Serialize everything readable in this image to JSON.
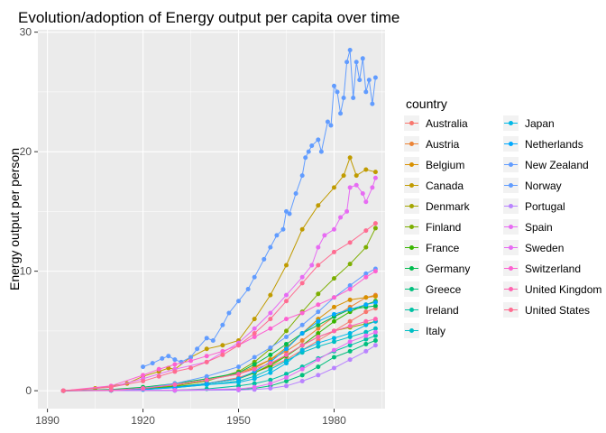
{
  "chart_data": {
    "type": "line",
    "title": "Evolution/adoption of Energy output per capita over time",
    "xlabel": "",
    "ylabel": "Energy output per person",
    "xlim": [
      1887,
      1996
    ],
    "ylim": [
      -1.5,
      30.2
    ],
    "xticks": [
      1890,
      1920,
      1950,
      1980
    ],
    "yticks": [
      0,
      10,
      20,
      30
    ],
    "grid": true,
    "markers": true,
    "legend": {
      "title": "country",
      "position": "right"
    },
    "series": [
      {
        "name": "Australia",
        "color": "#F8766D",
        "x": [
          1895,
          1910,
          1920,
          1930,
          1940,
          1950,
          1960,
          1965,
          1970,
          1975,
          1980,
          1985,
          1990,
          1993
        ],
        "y": [
          0,
          0.05,
          0.15,
          0.3,
          0.6,
          1.1,
          2.0,
          2.6,
          3.4,
          4.2,
          5.0,
          5.8,
          6.6,
          6.9
        ]
      },
      {
        "name": "Austria",
        "color": "#EB8335",
        "x": [
          1895,
          1910,
          1920,
          1930,
          1940,
          1950,
          1955,
          1960,
          1965,
          1970,
          1975,
          1980,
          1985,
          1990,
          1993
        ],
        "y": [
          0,
          0.05,
          0.2,
          0.5,
          0.9,
          1.5,
          2.0,
          2.6,
          3.3,
          4.2,
          5.2,
          6.2,
          7.0,
          7.8,
          8.0
        ]
      },
      {
        "name": "Belgium",
        "color": "#D89000",
        "x": [
          1895,
          1910,
          1920,
          1930,
          1940,
          1950,
          1955,
          1960,
          1965,
          1970,
          1975,
          1980,
          1985,
          1990,
          1993
        ],
        "y": [
          0,
          0.05,
          0.2,
          0.5,
          0.9,
          1.4,
          1.9,
          2.6,
          3.6,
          4.8,
          6.0,
          7.0,
          7.6,
          7.8,
          7.9
        ]
      },
      {
        "name": "Canada",
        "color": "#C09B00",
        "x": [
          1895,
          1905,
          1915,
          1920,
          1925,
          1928,
          1930,
          1935,
          1940,
          1945,
          1950,
          1955,
          1960,
          1965,
          1970,
          1975,
          1980,
          1983,
          1985,
          1987,
          1990,
          1993
        ],
        "y": [
          0,
          0.2,
          0.6,
          1.2,
          1.6,
          1.9,
          1.8,
          2.8,
          3.5,
          3.8,
          4.2,
          6.0,
          8.0,
          10.5,
          13.5,
          15.5,
          17.0,
          18.0,
          19.5,
          18.0,
          18.5,
          18.3
        ]
      },
      {
        "name": "Denmark",
        "color": "#A3A500",
        "x": [
          1895,
          1910,
          1920,
          1930,
          1940,
          1950,
          1955,
          1960,
          1965,
          1970,
          1975,
          1980,
          1985,
          1990,
          1993
        ],
        "y": [
          0,
          0.03,
          0.1,
          0.3,
          0.6,
          1.0,
          1.5,
          2.2,
          3.0,
          3.8,
          4.5,
          5.0,
          5.3,
          5.6,
          5.8
        ]
      },
      {
        "name": "Finland",
        "color": "#7CAE00",
        "x": [
          1895,
          1910,
          1920,
          1930,
          1940,
          1950,
          1955,
          1960,
          1965,
          1970,
          1975,
          1980,
          1985,
          1990,
          1993
        ],
        "y": [
          0,
          0.05,
          0.15,
          0.4,
          0.8,
          1.6,
          2.4,
          3.5,
          5.0,
          6.6,
          8.1,
          9.4,
          10.6,
          12.0,
          13.6
        ]
      },
      {
        "name": "France",
        "color": "#39B600",
        "x": [
          1895,
          1910,
          1920,
          1930,
          1940,
          1950,
          1955,
          1960,
          1965,
          1970,
          1975,
          1980,
          1985,
          1990,
          1993
        ],
        "y": [
          0,
          0.05,
          0.15,
          0.35,
          0.6,
          1.0,
          1.5,
          2.1,
          2.9,
          3.8,
          4.8,
          5.8,
          6.6,
          7.2,
          7.5
        ]
      },
      {
        "name": "Germany",
        "color": "#00BB4E",
        "x": [
          1895,
          1910,
          1920,
          1930,
          1940,
          1950,
          1955,
          1960,
          1965,
          1970,
          1975,
          1980,
          1985,
          1990,
          1993
        ],
        "y": [
          0,
          0.1,
          0.3,
          0.6,
          1.0,
          1.5,
          2.2,
          3.0,
          3.9,
          4.8,
          5.5,
          6.2,
          6.8,
          7.0,
          7.1
        ]
      },
      {
        "name": "Greece",
        "color": "#00BF7D",
        "x": [
          1895,
          1930,
          1950,
          1955,
          1960,
          1965,
          1970,
          1975,
          1980,
          1985,
          1990,
          1993
        ],
        "y": [
          0,
          0.02,
          0.1,
          0.2,
          0.4,
          0.8,
          1.3,
          2.0,
          2.8,
          3.3,
          3.9,
          4.2
        ]
      },
      {
        "name": "Ireland",
        "color": "#00C1A3",
        "x": [
          1895,
          1930,
          1940,
          1950,
          1955,
          1960,
          1965,
          1970,
          1975,
          1980,
          1985,
          1990,
          1993
        ],
        "y": [
          0,
          0.05,
          0.15,
          0.4,
          0.6,
          0.9,
          1.4,
          2.0,
          2.7,
          3.3,
          3.8,
          4.3,
          4.6
        ]
      },
      {
        "name": "Italy",
        "color": "#00BFC4",
        "x": [
          1895,
          1910,
          1920,
          1930,
          1940,
          1950,
          1955,
          1960,
          1965,
          1970,
          1975,
          1980,
          1985,
          1990,
          1993
        ],
        "y": [
          0,
          0.03,
          0.1,
          0.25,
          0.5,
          0.8,
          1.2,
          1.8,
          2.5,
          3.2,
          3.7,
          4.1,
          4.5,
          4.9,
          5.2
        ]
      },
      {
        "name": "Japan",
        "color": "#00B8E7",
        "x": [
          1895,
          1910,
          1920,
          1930,
          1940,
          1950,
          1955,
          1960,
          1965,
          1970,
          1975,
          1980,
          1985,
          1990,
          1993
        ],
        "y": [
          0,
          0.03,
          0.1,
          0.25,
          0.5,
          0.7,
          1.0,
          1.5,
          2.3,
          3.4,
          4.0,
          4.4,
          4.8,
          5.5,
          5.8
        ]
      },
      {
        "name": "Netherlands",
        "color": "#00A9FF",
        "x": [
          1895,
          1910,
          1920,
          1930,
          1940,
          1950,
          1955,
          1960,
          1965,
          1970,
          1975,
          1980,
          1985,
          1990,
          1993
        ],
        "y": [
          0,
          0.03,
          0.1,
          0.3,
          0.6,
          1.0,
          1.6,
          2.4,
          3.5,
          4.8,
          5.8,
          6.4,
          6.8,
          7.2,
          7.4
        ]
      },
      {
        "name": "New Zealand",
        "color": "#619CFF",
        "x": [
          1895,
          1910,
          1920,
          1930,
          1940,
          1950,
          1955,
          1960,
          1965,
          1970,
          1975,
          1980,
          1985,
          1990,
          1993
        ],
        "y": [
          0,
          0.05,
          0.2,
          0.6,
          1.2,
          2.0,
          2.8,
          3.6,
          4.5,
          5.5,
          6.6,
          7.8,
          8.8,
          9.8,
          10.2
        ]
      },
      {
        "name": "Norway",
        "color": "#619CFF",
        "x": [
          1920,
          1923,
          1926,
          1928,
          1930,
          1932,
          1935,
          1937,
          1940,
          1942,
          1945,
          1947,
          1950,
          1953,
          1955,
          1958,
          1960,
          1962,
          1964,
          1965,
          1966,
          1968,
          1970,
          1971,
          1972,
          1973,
          1975,
          1976,
          1978,
          1979,
          1980,
          1981,
          1982,
          1983,
          1984,
          1985,
          1986,
          1987,
          1988,
          1989,
          1990,
          1991,
          1992,
          1993
        ],
        "y": [
          2.0,
          2.3,
          2.7,
          2.9,
          2.6,
          2.4,
          2.8,
          3.5,
          4.4,
          4.2,
          5.5,
          6.5,
          7.5,
          8.5,
          9.5,
          11.0,
          12.0,
          13.0,
          13.5,
          15.0,
          14.8,
          16.5,
          18.0,
          19.5,
          20.0,
          20.5,
          21.0,
          20.0,
          22.5,
          22.2,
          25.5,
          25.0,
          23.2,
          24.5,
          27.5,
          28.5,
          24.5,
          27.5,
          26.0,
          27.8,
          25.0,
          26.0,
          24.0,
          26.2
        ]
      },
      {
        "name": "Portugal",
        "color": "#B983FF",
        "x": [
          1895,
          1930,
          1950,
          1955,
          1960,
          1965,
          1970,
          1975,
          1980,
          1985,
          1990,
          1993
        ],
        "y": [
          0,
          0.02,
          0.05,
          0.1,
          0.2,
          0.4,
          0.8,
          1.3,
          1.9,
          2.6,
          3.3,
          3.8
        ]
      },
      {
        "name": "Spain",
        "color": "#E76BF3",
        "x": [
          1895,
          1930,
          1950,
          1955,
          1960,
          1965,
          1970,
          1975,
          1980,
          1985,
          1990,
          1993
        ],
        "y": [
          0,
          0.05,
          0.15,
          0.3,
          0.6,
          1.1,
          1.8,
          2.6,
          3.4,
          4.1,
          4.6,
          4.9
        ]
      },
      {
        "name": "Sweden",
        "color": "#E76BF3",
        "x": [
          1895,
          1910,
          1920,
          1930,
          1940,
          1950,
          1955,
          1960,
          1965,
          1970,
          1973,
          1975,
          1977,
          1980,
          1982,
          1984,
          1985,
          1987,
          1989,
          1990,
          1992,
          1993
        ],
        "y": [
          0,
          0.3,
          1.0,
          1.8,
          2.4,
          4.0,
          5.2,
          6.5,
          8.0,
          9.5,
          10.5,
          12.0,
          13.0,
          13.5,
          14.5,
          15.0,
          17.0,
          17.2,
          16.5,
          15.8,
          17.0,
          17.8
        ]
      },
      {
        "name": "Switzerland",
        "color": "#FD61D1",
        "x": [
          1895,
          1910,
          1920,
          1925,
          1930,
          1935,
          1940,
          1945,
          1950,
          1955,
          1960,
          1965,
          1970,
          1975,
          1980,
          1985,
          1990,
          1993
        ],
        "y": [
          0,
          0.4,
          1.3,
          1.8,
          2.2,
          2.5,
          2.9,
          3.3,
          3.8,
          4.5,
          5.2,
          6.0,
          6.5,
          7.2,
          7.8,
          8.5,
          9.5,
          10.0
        ]
      },
      {
        "name": "United Kingdom",
        "color": "#FF64B0",
        "x": [
          1895,
          1910,
          1920,
          1930,
          1940,
          1950,
          1955,
          1960,
          1965,
          1970,
          1975,
          1980,
          1985,
          1990,
          1993
        ],
        "y": [
          0,
          0.05,
          0.2,
          0.5,
          0.9,
          1.4,
          1.8,
          2.3,
          3.0,
          3.8,
          4.5,
          5.0,
          5.4,
          5.8,
          6.0
        ]
      },
      {
        "name": "United States",
        "color": "#FF6C91",
        "x": [
          1895,
          1910,
          1920,
          1925,
          1930,
          1935,
          1940,
          1945,
          1950,
          1955,
          1960,
          1965,
          1970,
          1975,
          1980,
          1985,
          1990,
          1993
        ],
        "y": [
          0,
          0.3,
          0.8,
          1.2,
          1.6,
          1.9,
          2.4,
          3.0,
          3.8,
          4.8,
          6.0,
          7.5,
          9.0,
          10.5,
          11.6,
          12.4,
          13.4,
          14.0
        ]
      }
    ]
  }
}
